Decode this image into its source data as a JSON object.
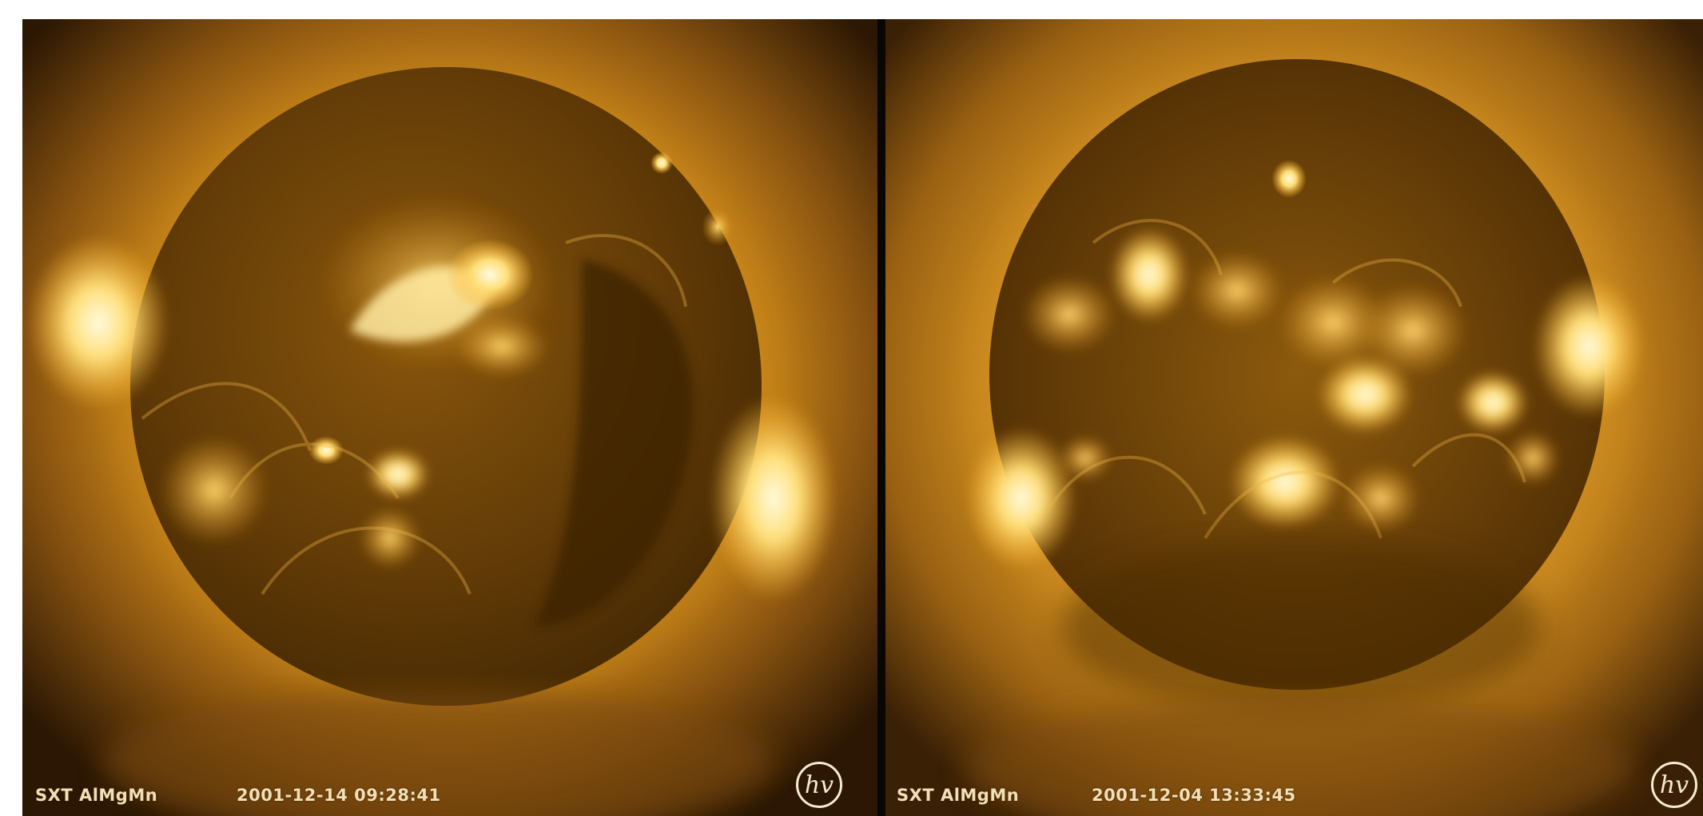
{
  "panels": [
    {
      "instrument": "SXT AlMgMn",
      "timestamp": "2001-12-14 09:28:41",
      "logo_text": "hv"
    },
    {
      "instrument": "SXT AlMgMn",
      "timestamp": "2001-12-04 13:33:45",
      "logo_text": "hv"
    }
  ],
  "colors": {
    "corona_bright": "#fff6c8",
    "corona_mid": "#d99a1e",
    "corona_dark": "#5a3505",
    "disk": "#6b4106",
    "background": "#000000"
  }
}
